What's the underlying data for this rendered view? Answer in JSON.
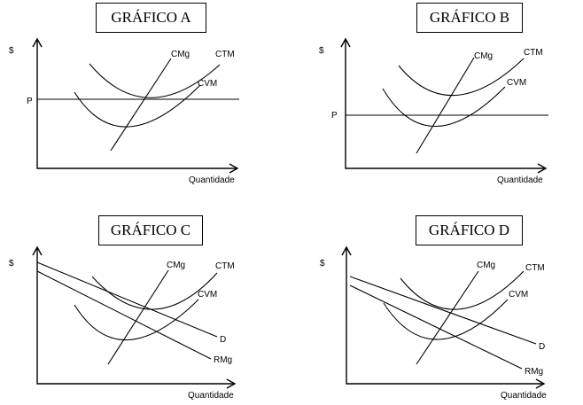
{
  "graphs": [
    {
      "title": "GRÁFICO A",
      "y_label": "$",
      "x_label": "Quantidade",
      "price_label": "P",
      "cmg": "CMg",
      "ctm": "CTM",
      "cvm": "CVM"
    },
    {
      "title": "GRÁFICO B",
      "y_label": "$",
      "x_label": "Quantidade",
      "price_label": "P",
      "cmg": "CMg",
      "ctm": "CTM",
      "cvm": "CVM"
    },
    {
      "title": "GRÁFICO C",
      "y_label": "$",
      "x_label": "Quantidade",
      "cmg": "CMg",
      "ctm": "CTM",
      "cvm": "CVM",
      "d": "D",
      "rmg": "RMg"
    },
    {
      "title": "GRÁFICO D",
      "y_label": "$",
      "x_label": "Quantidade",
      "cmg": "CMg",
      "ctm": "CTM",
      "cvm": "CVM",
      "d": "D",
      "rmg": "RMg"
    }
  ]
}
